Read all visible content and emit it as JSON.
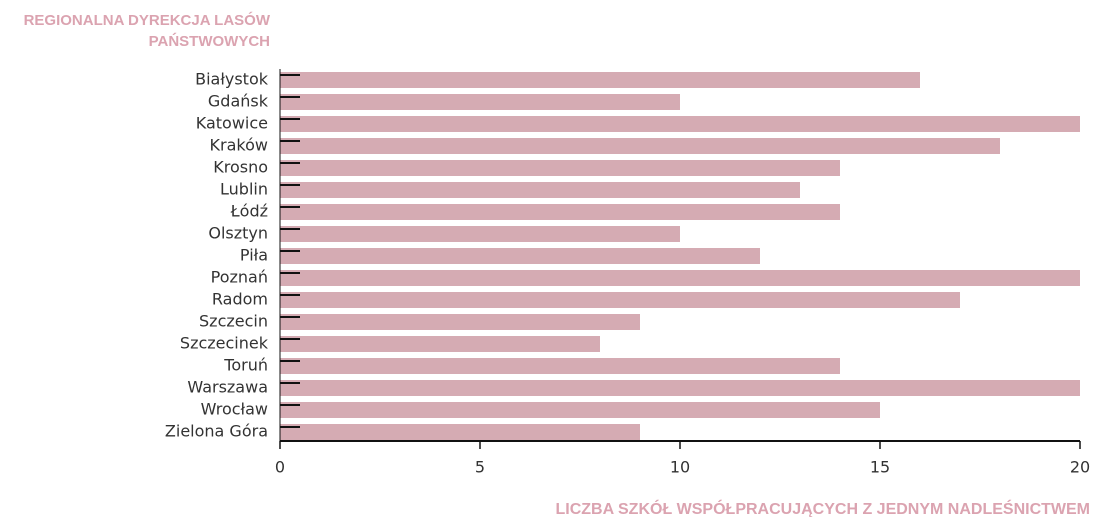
{
  "chart_data": {
    "type": "barh",
    "ylabel": "REGIONALNA DYREKCJA LASÓW PAŃSTWOWYCH",
    "xlabel": "LICZBA SZKÓŁ WSPÓŁPRACUJĄCYCH Z JEDNYM NADLEŚNICTWEM",
    "categories": [
      "Białystok",
      "Gdańsk",
      "Katowice",
      "Kraków",
      "Krosno",
      "Lublin",
      "Łódź",
      "Olsztyn",
      "Piła",
      "Poznań",
      "Radom",
      "Szczecin",
      "Szczecinek",
      "Toruń",
      "Warszawa",
      "Wrocław",
      "Zielona Góra"
    ],
    "values": [
      16,
      10,
      20,
      18,
      14,
      13,
      14,
      10,
      12,
      20,
      17,
      9,
      8,
      14,
      20,
      15,
      9
    ],
    "color": "#d5abb3",
    "xlim": [
      0,
      20
    ],
    "xticks": [
      0,
      5,
      10,
      15,
      20
    ]
  }
}
